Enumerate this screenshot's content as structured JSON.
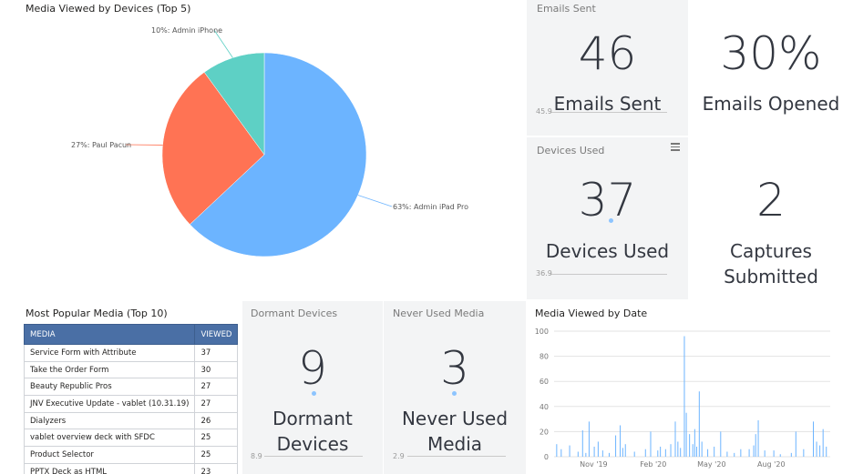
{
  "pie_panel": {
    "title": "Media Viewed by Devices (Top 5)",
    "slice_labels": [
      "63%: Admin iPad Pro",
      "27%: Paul Pacun",
      "10%: Admin iPhone"
    ],
    "colors": [
      "#6cb4ff",
      "#ff7354",
      "#5ed0c5"
    ]
  },
  "cards": {
    "emails_sent": {
      "title": "Emails Sent",
      "value": "46",
      "label": "Emails Sent",
      "ref": "45.9"
    },
    "emails_opened": {
      "value": "30%",
      "label": "Emails Opened"
    },
    "devices_used": {
      "title": "Devices Used",
      "value": "37",
      "label": "Devices Used",
      "ref": "36.9"
    },
    "captures": {
      "value": "2",
      "label_line1": "Captures",
      "label_line2": "Submitted"
    },
    "dormant": {
      "title": "Dormant Devices",
      "value": "9",
      "label_line1": "Dormant",
      "label_line2": "Devices",
      "ref": "8.9"
    },
    "never_used": {
      "title": "Never Used Media",
      "value": "3",
      "label_line1": "Never Used",
      "label_line2": "Media",
      "ref": "2.9"
    }
  },
  "popular": {
    "title": "Most Popular Media (Top 10)",
    "col_media": "MEDIA",
    "col_viewed": "VIEWED",
    "rows": [
      {
        "media": "Service Form with Attribute",
        "viewed": "37"
      },
      {
        "media": "Take the Order Form",
        "viewed": "30"
      },
      {
        "media": "Beauty Republic Pros",
        "viewed": "27"
      },
      {
        "media": "JNV Executive Update - vablet (10.31.19)",
        "viewed": "27"
      },
      {
        "media": "Dialyzers",
        "viewed": "26"
      },
      {
        "media": "vablet overview deck with SFDC",
        "viewed": "25"
      },
      {
        "media": "Product Selector",
        "viewed": "25"
      },
      {
        "media": "PPTX Deck as HTML",
        "viewed": "23"
      }
    ]
  },
  "date_chart": {
    "title": "Media Viewed by Date"
  },
  "chart_data": [
    {
      "type": "pie",
      "title": "Media Viewed by Devices (Top 5)",
      "categories": [
        "Admin iPad Pro",
        "Paul Pacun",
        "Admin iPhone"
      ],
      "values": [
        63,
        27,
        10
      ]
    },
    {
      "type": "bar",
      "title": "Media Viewed by Date",
      "xlabel": "",
      "ylabel": "",
      "ylim": [
        0,
        100
      ],
      "yticks": [
        0,
        20,
        40,
        60,
        80,
        100
      ],
      "xticks": [
        "Nov '19",
        "Feb '20",
        "May '20",
        "Aug '20"
      ],
      "grid": true,
      "series": [
        {
          "spikes": [
            {
              "x": "2019-09-05",
              "y": 10
            },
            {
              "x": "2019-09-12",
              "y": 6
            },
            {
              "x": "2019-09-25",
              "y": 9
            },
            {
              "x": "2019-10-08",
              "y": 4
            },
            {
              "x": "2019-10-15",
              "y": 21
            },
            {
              "x": "2019-10-20",
              "y": 3
            },
            {
              "x": "2019-10-25",
              "y": 28
            },
            {
              "x": "2019-11-02",
              "y": 8
            },
            {
              "x": "2019-11-08",
              "y": 12
            },
            {
              "x": "2019-11-15",
              "y": 5
            },
            {
              "x": "2019-11-25",
              "y": 3
            },
            {
              "x": "2019-12-05",
              "y": 17
            },
            {
              "x": "2019-12-12",
              "y": 25
            },
            {
              "x": "2019-12-16",
              "y": 7
            },
            {
              "x": "2019-12-20",
              "y": 10
            },
            {
              "x": "2020-01-03",
              "y": 4
            },
            {
              "x": "2020-01-20",
              "y": 6
            },
            {
              "x": "2020-01-28",
              "y": 20
            },
            {
              "x": "2020-02-08",
              "y": 5
            },
            {
              "x": "2020-02-12",
              "y": 8
            },
            {
              "x": "2020-02-20",
              "y": 6
            },
            {
              "x": "2020-02-28",
              "y": 10
            },
            {
              "x": "2020-03-06",
              "y": 28
            },
            {
              "x": "2020-03-10",
              "y": 12
            },
            {
              "x": "2020-03-14",
              "y": 7
            },
            {
              "x": "2020-03-20",
              "y": 96
            },
            {
              "x": "2020-03-23",
              "y": 35
            },
            {
              "x": "2020-03-28",
              "y": 18
            },
            {
              "x": "2020-04-02",
              "y": 10
            },
            {
              "x": "2020-04-05",
              "y": 22
            },
            {
              "x": "2020-04-08",
              "y": 8
            },
            {
              "x": "2020-04-12",
              "y": 52
            },
            {
              "x": "2020-04-16",
              "y": 12
            },
            {
              "x": "2020-04-25",
              "y": 6
            },
            {
              "x": "2020-05-05",
              "y": 8
            },
            {
              "x": "2020-05-15",
              "y": 20
            },
            {
              "x": "2020-05-25",
              "y": 4
            },
            {
              "x": "2020-06-05",
              "y": 3
            },
            {
              "x": "2020-06-15",
              "y": 6
            },
            {
              "x": "2020-06-28",
              "y": 6
            },
            {
              "x": "2020-07-05",
              "y": 9
            },
            {
              "x": "2020-07-08",
              "y": 18
            },
            {
              "x": "2020-07-12",
              "y": 29
            },
            {
              "x": "2020-07-22",
              "y": 5
            },
            {
              "x": "2020-08-05",
              "y": 5
            },
            {
              "x": "2020-08-15",
              "y": 2
            },
            {
              "x": "2020-09-01",
              "y": 3
            },
            {
              "x": "2020-09-08",
              "y": 20
            },
            {
              "x": "2020-09-20",
              "y": 6
            },
            {
              "x": "2020-10-05",
              "y": 28
            },
            {
              "x": "2020-10-10",
              "y": 12
            },
            {
              "x": "2020-10-15",
              "y": 9
            },
            {
              "x": "2020-10-20",
              "y": 22
            },
            {
              "x": "2020-10-25",
              "y": 8
            }
          ]
        }
      ]
    }
  ]
}
